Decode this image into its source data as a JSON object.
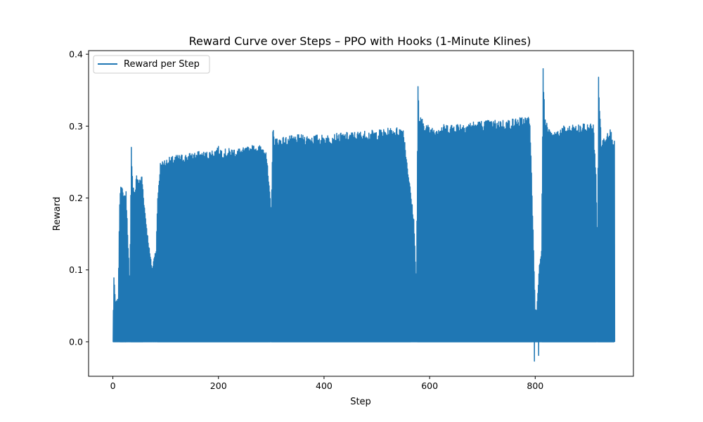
{
  "chart_data": {
    "type": "line",
    "title": "Reward Curve over Steps – PPO with Hooks (1-Minute Klines)",
    "xlabel": "Step",
    "ylabel": "Reward",
    "xlim": [
      -46,
      986
    ],
    "ylim": [
      -0.048,
      0.405
    ],
    "xticks": [
      0,
      200,
      400,
      600,
      800
    ],
    "yticks": [
      0.0,
      0.1,
      0.2,
      0.3,
      0.4
    ],
    "xtick_labels": [
      "0",
      "200",
      "400",
      "600",
      "800"
    ],
    "ytick_labels": [
      "0.0",
      "0.1",
      "0.2",
      "0.3",
      "0.4"
    ],
    "grid": false,
    "legend": {
      "position": "upper-left",
      "entries": [
        "Reward per Step"
      ]
    },
    "series": [
      {
        "name": "Reward per Step",
        "color": "#1f77b4",
        "baseline": 0.0,
        "x_range": [
          0,
          950
        ],
        "envelope": {
          "x": [
            0,
            2,
            5,
            10,
            13,
            15,
            20,
            25,
            30,
            32,
            35,
            38,
            42,
            45,
            50,
            55,
            60,
            65,
            70,
            75,
            78,
            82,
            85,
            90,
            100,
            120,
            140,
            160,
            180,
            200,
            210,
            230,
            250,
            270,
            290,
            300,
            303,
            306,
            320,
            350,
            400,
            450,
            500,
            550,
            570,
            575,
            578,
            580,
            600,
            650,
            700,
            750,
            790,
            797,
            800,
            803,
            808,
            812,
            815,
            818,
            830,
            850,
            880,
            910,
            915,
            918,
            920,
            925,
            940,
            950
          ],
          "y": [
            0.0,
            0.091,
            0.055,
            0.06,
            0.2,
            0.226,
            0.205,
            0.21,
            0.118,
            0.068,
            0.274,
            0.22,
            0.21,
            0.236,
            0.225,
            0.234,
            0.19,
            0.155,
            0.125,
            0.1,
            0.12,
            0.13,
            0.205,
            0.25,
            0.255,
            0.26,
            0.262,
            0.265,
            0.265,
            0.272,
            0.268,
            0.27,
            0.27,
            0.275,
            0.272,
            0.182,
            0.3,
            0.285,
            0.285,
            0.288,
            0.288,
            0.292,
            0.295,
            0.3,
            0.172,
            0.08,
            0.362,
            0.315,
            0.3,
            0.305,
            0.308,
            0.31,
            0.315,
            0.13,
            0.045,
            0.045,
            0.108,
            0.13,
            0.384,
            0.315,
            0.29,
            0.3,
            0.302,
            0.305,
            0.24,
            0.12,
            0.373,
            0.28,
            0.3,
            0.283
          ]
        },
        "dips": [
          {
            "x": 798,
            "y": -0.027
          },
          {
            "x": 806,
            "y": -0.019
          }
        ]
      }
    ]
  }
}
